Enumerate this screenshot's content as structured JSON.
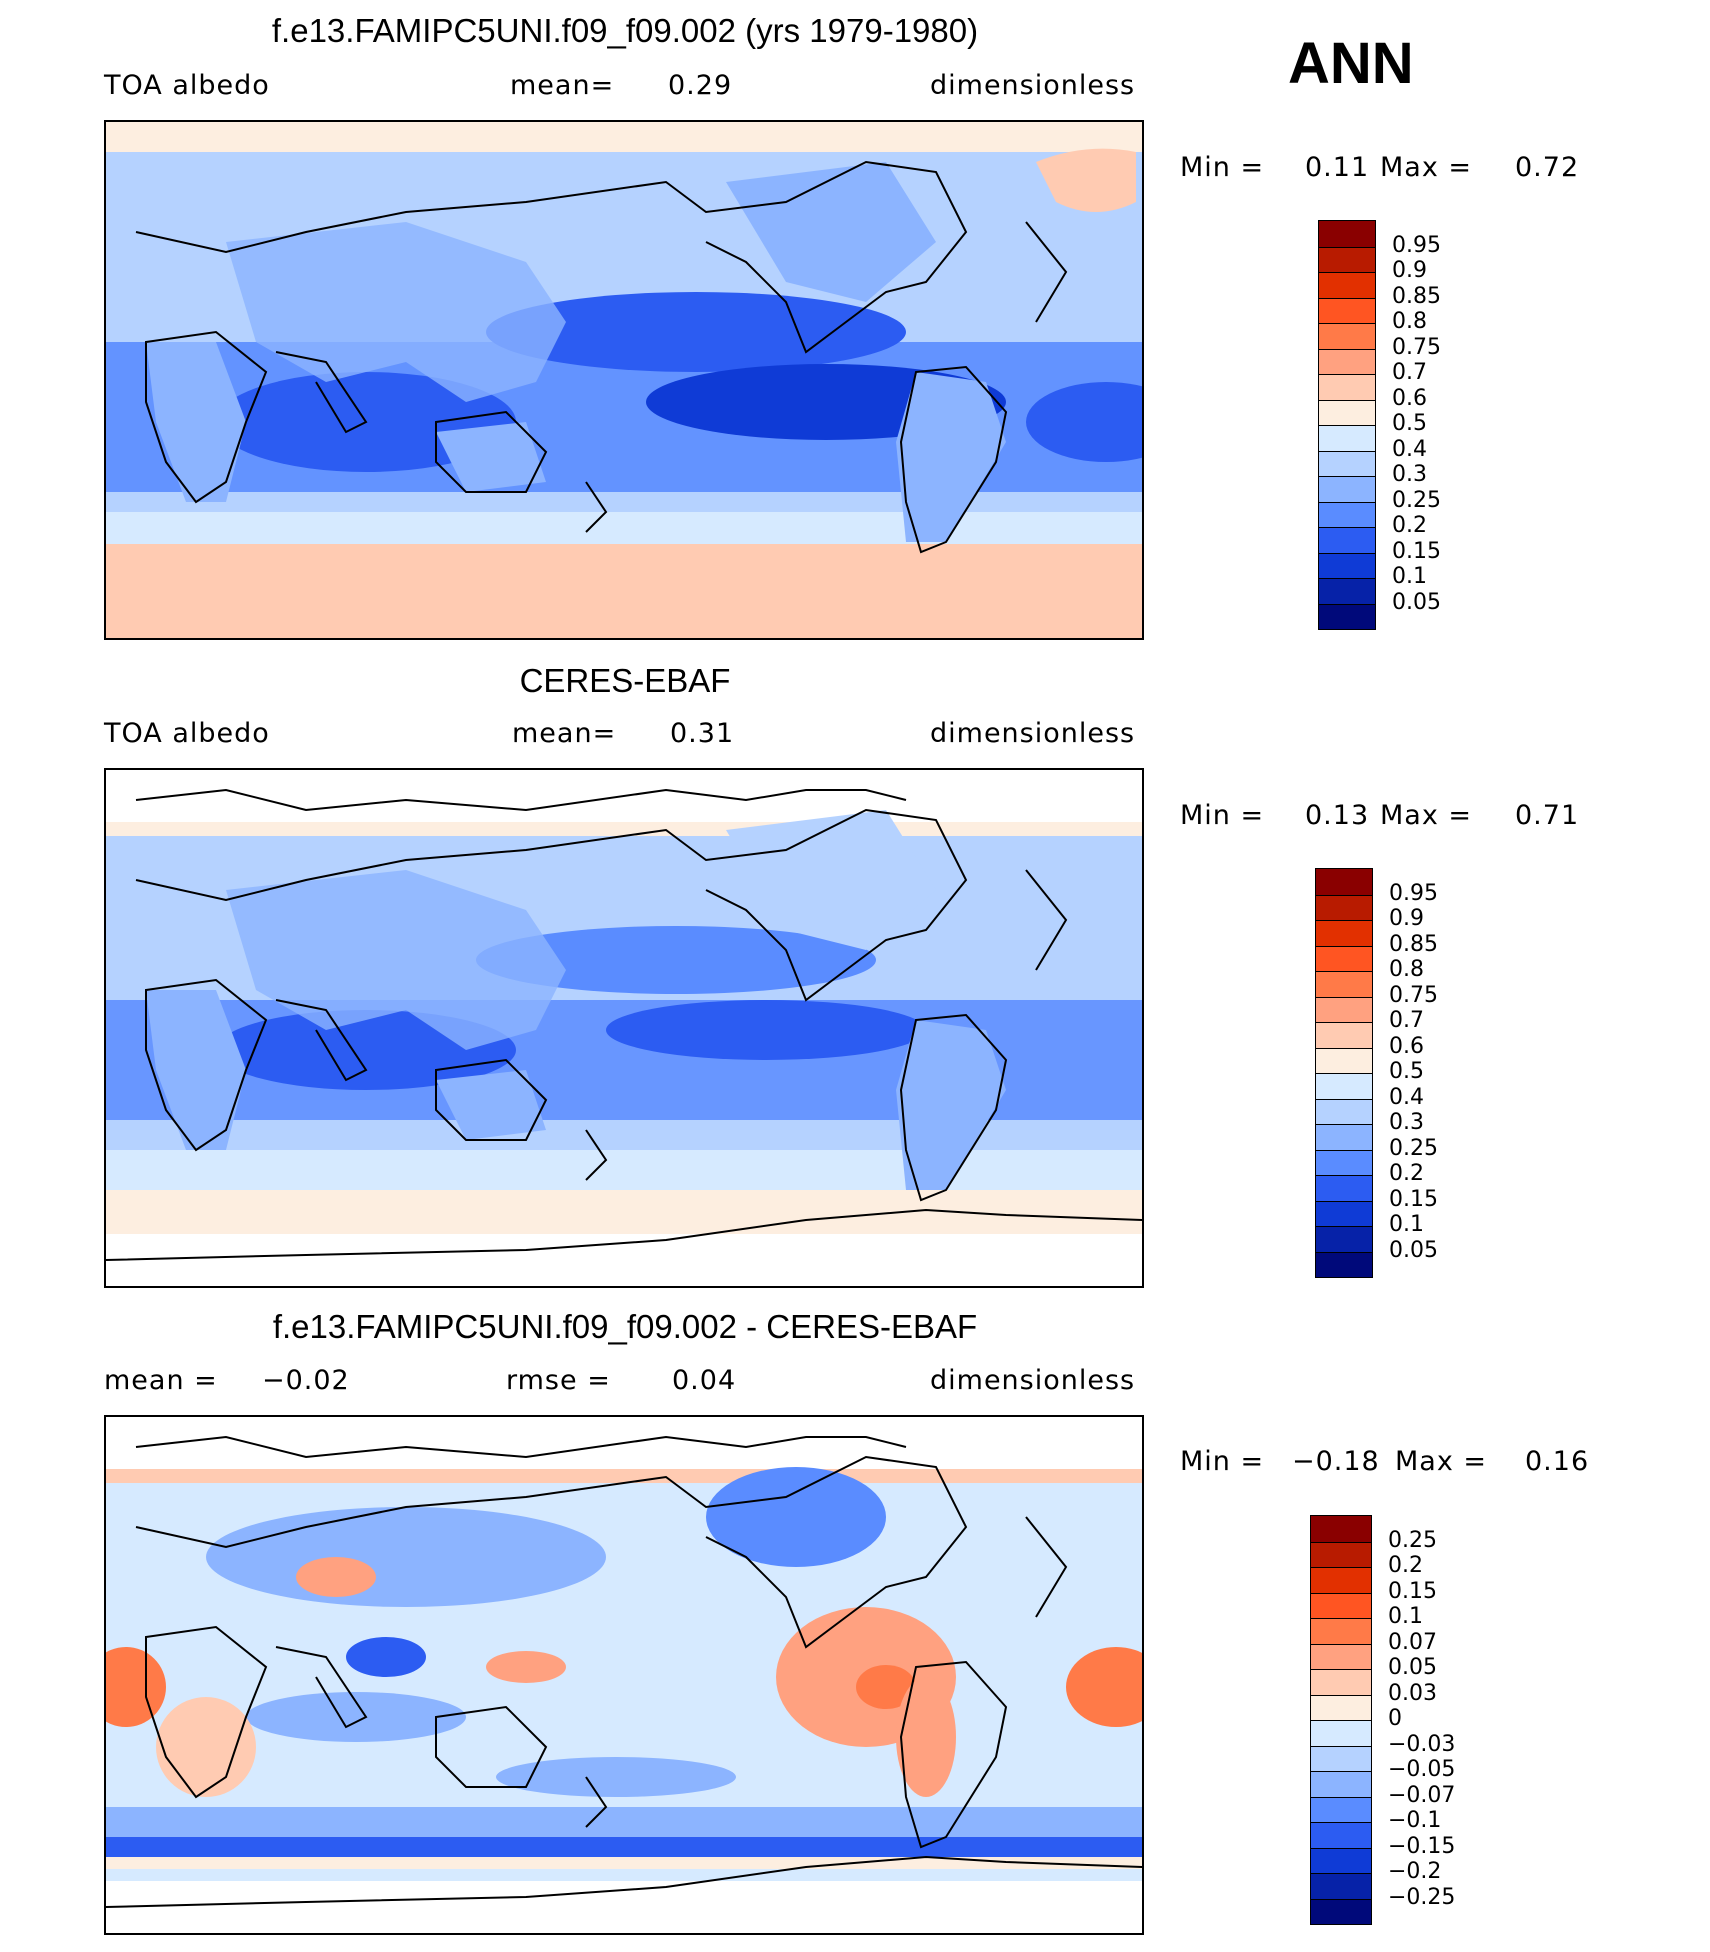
{
  "season": "ANN",
  "panels": [
    {
      "title": "f.e13.FAMIPC5UNI.f09_f09.002 (yrs 1979-1980)",
      "left_label": "TOA  albedo",
      "center_label": "mean=",
      "center_value": "0.29",
      "right_label": "dimensionless",
      "min_label": "Min  =",
      "min_value": "0.11",
      "max_label": "Max  =",
      "max_value": "0.72",
      "colorbar": {
        "colors": [
          "#8a0000",
          "#b81b00",
          "#e23000",
          "#ff5522",
          "#ff7a48",
          "#ffa180",
          "#ffcbb2",
          "#fdeee0",
          "#d6eaff",
          "#b5d2ff",
          "#8cb4ff",
          "#5a8cff",
          "#2c5cf2",
          "#0f3bd6",
          "#0622a8",
          "#00097a"
        ],
        "labels": [
          "0.95",
          "0.9",
          "0.85",
          "0.8",
          "0.75",
          "0.7",
          "0.6",
          "0.5",
          "0.4",
          "0.3",
          "0.25",
          "0.2",
          "0.15",
          "0.1",
          "0.05"
        ]
      }
    },
    {
      "title": "CERES-EBAF",
      "left_label": "TOA  albedo",
      "center_label": "mean=",
      "center_value": "0.31",
      "right_label": "dimensionless",
      "min_label": "Min  =",
      "min_value": "0.13",
      "max_label": "Max  =",
      "max_value": "0.71",
      "colorbar": {
        "colors": [
          "#8a0000",
          "#b81b00",
          "#e23000",
          "#ff5522",
          "#ff7a48",
          "#ffa180",
          "#ffcbb2",
          "#fdeee0",
          "#d6eaff",
          "#b5d2ff",
          "#8cb4ff",
          "#5a8cff",
          "#2c5cf2",
          "#0f3bd6",
          "#0622a8",
          "#00097a"
        ],
        "labels": [
          "0.95",
          "0.9",
          "0.85",
          "0.8",
          "0.75",
          "0.7",
          "0.6",
          "0.5",
          "0.4",
          "0.3",
          "0.25",
          "0.2",
          "0.15",
          "0.1",
          "0.05"
        ]
      }
    },
    {
      "title": "f.e13.FAMIPC5UNI.f09_f09.002 - CERES-EBAF",
      "left_label": "mean  =",
      "left_value": "−0.02",
      "center_label": "rmse  =",
      "center_value": "0.04",
      "right_label": "dimensionless",
      "min_label": "Min  =",
      "min_value": "−0.18",
      "max_label": "Max  =",
      "max_value": "0.16",
      "colorbar": {
        "colors": [
          "#8a0000",
          "#b81b00",
          "#e23000",
          "#ff5522",
          "#ff7a48",
          "#ffa180",
          "#ffcbb2",
          "#fdeee0",
          "#d6eaff",
          "#b5d2ff",
          "#8cb4ff",
          "#5a8cff",
          "#2c5cf2",
          "#0f3bd6",
          "#0622a8",
          "#00097a"
        ],
        "labels": [
          "0.25",
          "0.2",
          "0.15",
          "0.1",
          "0.07",
          "0.05",
          "0.03",
          "0",
          "−0.03",
          "−0.05",
          "−0.07",
          "−0.1",
          "−0.15",
          "−0.2",
          "−0.25"
        ]
      }
    }
  ]
}
